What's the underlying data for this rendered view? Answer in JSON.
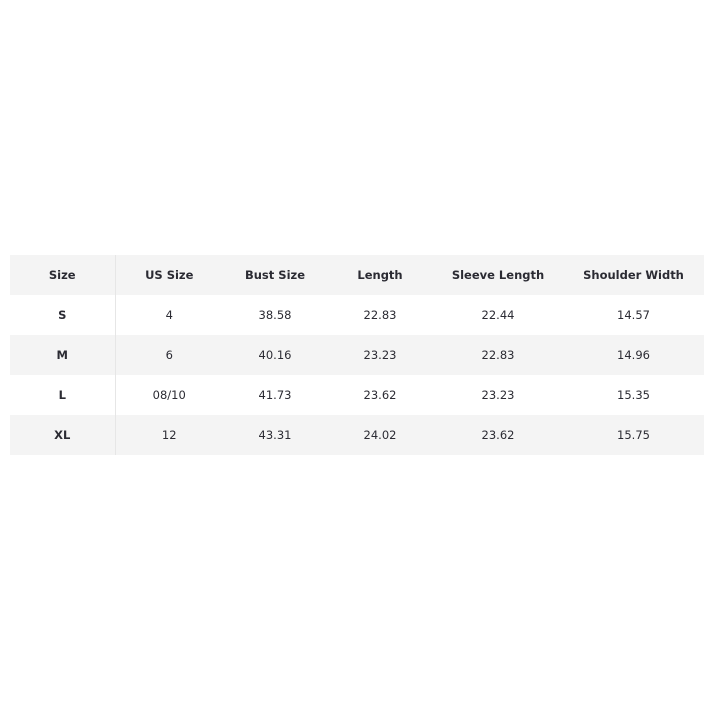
{
  "size_chart": {
    "headers": [
      "Size",
      "US Size",
      "Bust Size",
      "Length",
      "Sleeve Length",
      "Shoulder Width"
    ],
    "rows": [
      [
        "S",
        "4",
        "38.58",
        "22.83",
        "22.44",
        "14.57"
      ],
      [
        "M",
        "6",
        "40.16",
        "23.23",
        "22.83",
        "14.96"
      ],
      [
        "L",
        "08/10",
        "41.73",
        "23.62",
        "23.23",
        "15.35"
      ],
      [
        "XL",
        "12",
        "43.31",
        "24.02",
        "23.62",
        "15.75"
      ]
    ]
  }
}
